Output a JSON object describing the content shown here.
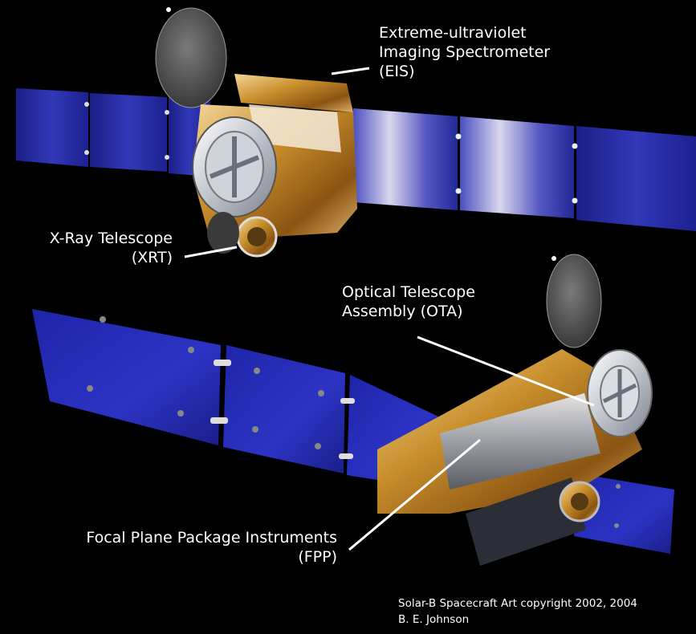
{
  "labels": {
    "eis": [
      "Extreme-ultraviolet",
      "Imaging Spectrometer",
      "(EIS)"
    ],
    "xrt": [
      "X-Ray Telescope",
      "(XRT)"
    ],
    "ota": [
      "Optical Telescope",
      "Assembly (OTA)"
    ],
    "fpp": [
      "Focal Plane Package Instruments",
      "(FPP)"
    ]
  },
  "credit": [
    "Solar-B Spacecraft Art copyright 2002, 2004",
    "B. E. Johnson"
  ],
  "colors": {
    "background": "#000000",
    "solar_panel": "#2a2fa8",
    "gold_foil": "#c8902a",
    "label_text": "#ffffff",
    "leader_line": "#ffffff"
  }
}
